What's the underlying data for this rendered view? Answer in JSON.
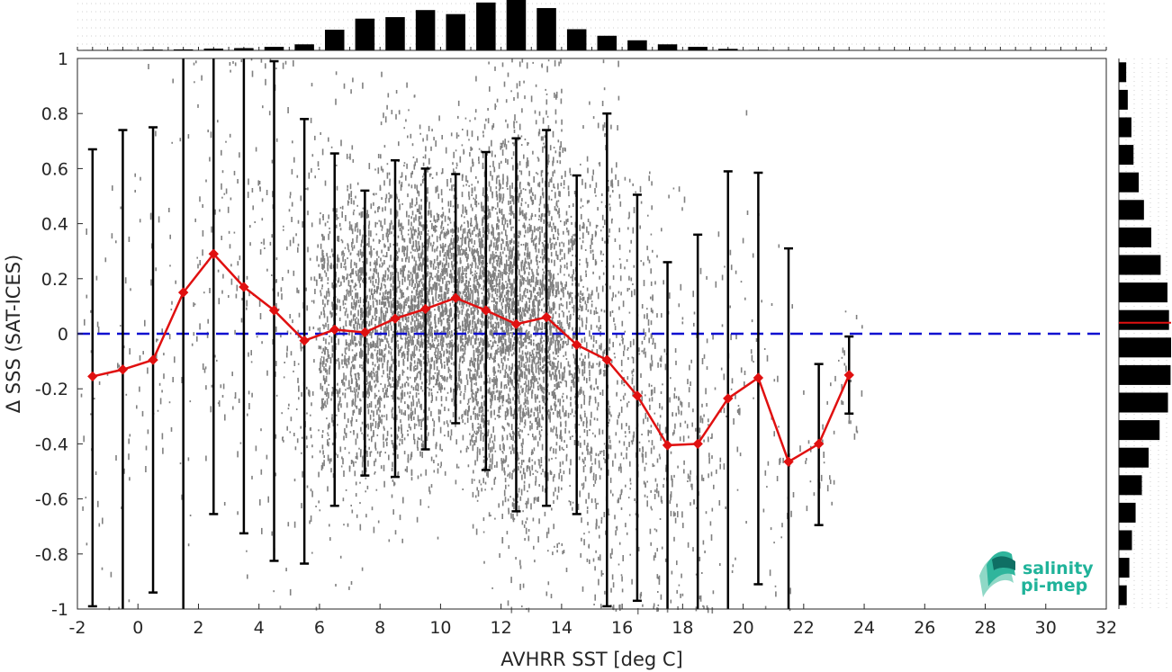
{
  "chart_data": {
    "type": "scatter",
    "xlabel": "AVHRR SST [deg C]",
    "ylabel": "Δ SSS (SAT-ICES)",
    "xlim": [
      -2,
      32
    ],
    "ylim": [
      -1,
      1
    ],
    "xticks": [
      "-2",
      "0",
      "2",
      "4",
      "6",
      "8",
      "10",
      "12",
      "14",
      "16",
      "18",
      "20",
      "22",
      "24",
      "26",
      "28",
      "30",
      "32"
    ],
    "yticks": [
      "-1",
      "-0.8",
      "-0.6",
      "-0.4",
      "-0.2",
      "0",
      "0.2",
      "0.4",
      "0.6",
      "0.8",
      "1"
    ],
    "zero_line": 0,
    "grid": false,
    "colors": {
      "scatter": "#808080",
      "mean_line": "#e01010",
      "zero_line": "#1010d0",
      "errorbar": "#000000",
      "hist": "#000000"
    },
    "binned_stats": {
      "x": [
        -1.5,
        -0.5,
        0.5,
        1.5,
        2.5,
        3.5,
        4.5,
        5.5,
        6.5,
        7.5,
        8.5,
        9.5,
        10.5,
        11.5,
        12.5,
        13.5,
        14.5,
        15.5,
        16.5,
        17.5,
        18.5,
        19.5,
        20.5,
        21.5,
        22.5,
        23.5
      ],
      "mean": [
        -0.155,
        -0.13,
        -0.095,
        0.15,
        0.29,
        0.17,
        0.085,
        -0.025,
        0.015,
        0.005,
        0.055,
        0.09,
        0.13,
        0.085,
        0.035,
        0.06,
        -0.04,
        -0.095,
        -0.225,
        -0.405,
        -0.4,
        -0.235,
        -0.16,
        -0.465,
        -0.4,
        -0.15
      ],
      "upper": [
        0.67,
        0.74,
        0.75,
        1.0,
        1.0,
        1.0,
        0.99,
        0.78,
        0.655,
        0.52,
        0.63,
        0.6,
        0.58,
        0.66,
        0.71,
        0.74,
        0.575,
        0.8,
        0.505,
        0.26,
        0.36,
        0.59,
        0.585,
        0.31,
        -0.11,
        -0.01
      ],
      "lower": [
        -0.99,
        -1.0,
        -0.94,
        -1.0,
        -0.655,
        -0.725,
        -0.825,
        -0.835,
        -0.625,
        -0.515,
        -0.52,
        -0.42,
        -0.325,
        -0.495,
        -0.645,
        -0.625,
        -0.655,
        -0.99,
        -0.97,
        -1.0,
        -1.0,
        -1.0,
        -0.91,
        -1.0,
        -0.695,
        -0.29
      ]
    },
    "histogram_x": {
      "bins": [
        -1.5,
        -0.5,
        0.5,
        1.5,
        2.5,
        3.5,
        4.5,
        5.5,
        6.5,
        7.5,
        8.5,
        9.5,
        10.5,
        11.5,
        12.5,
        13.5,
        14.5,
        15.5,
        16.5,
        17.5,
        18.5,
        19.5,
        20.5,
        21.5,
        22.5,
        23.5
      ],
      "counts": [
        0.005,
        0.01,
        0.015,
        0.02,
        0.035,
        0.045,
        0.07,
        0.12,
        0.41,
        0.63,
        0.66,
        0.8,
        0.72,
        0.95,
        1.0,
        0.84,
        0.42,
        0.29,
        0.2,
        0.12,
        0.07,
        0.03,
        0.01,
        0.005,
        0.003,
        0.002
      ]
    },
    "histogram_y": {
      "bins": [
        0.95,
        0.85,
        0.75,
        0.65,
        0.55,
        0.45,
        0.35,
        0.25,
        0.15,
        0.05,
        -0.05,
        -0.15,
        -0.25,
        -0.35,
        -0.45,
        -0.55,
        -0.65,
        -0.75,
        -0.85,
        -0.95
      ],
      "counts": [
        0.14,
        0.17,
        0.24,
        0.28,
        0.38,
        0.48,
        0.62,
        0.8,
        0.93,
        0.96,
        1.0,
        0.99,
        0.94,
        0.78,
        0.57,
        0.44,
        0.32,
        0.25,
        0.2,
        0.15
      ]
    }
  },
  "logo": {
    "line1": "salinity",
    "line2": "pi-mep"
  }
}
